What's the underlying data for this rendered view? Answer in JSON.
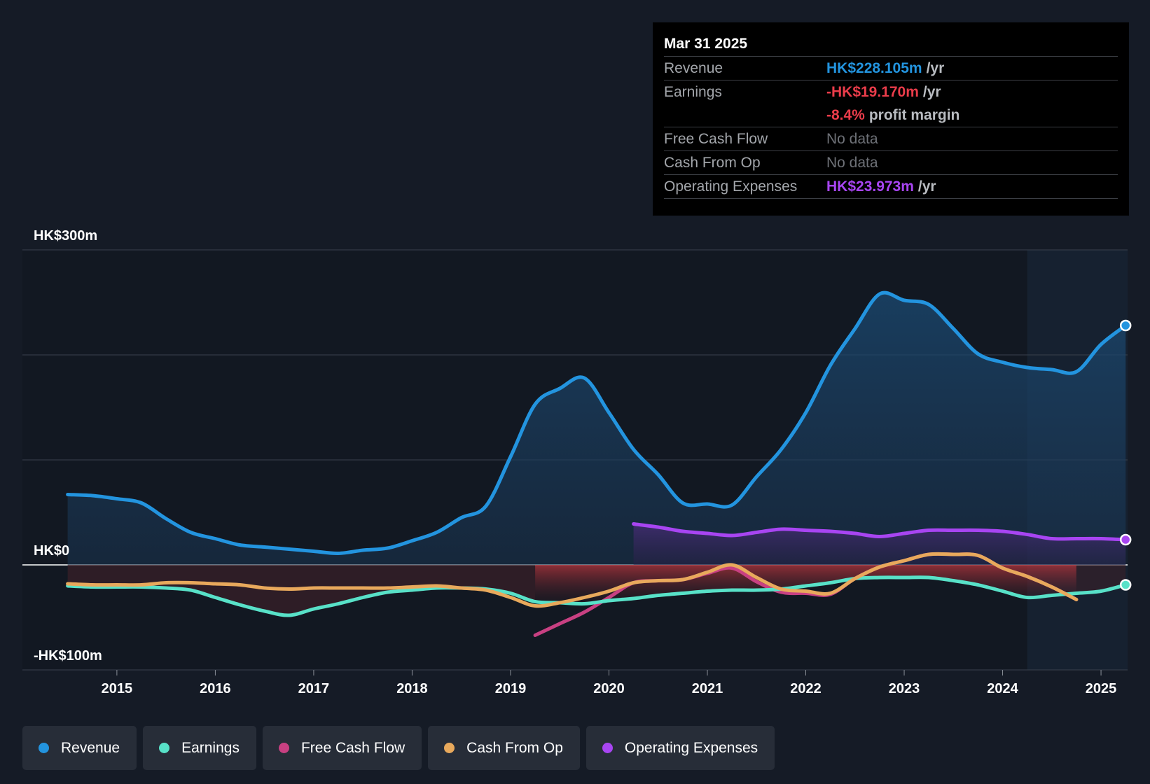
{
  "tooltip": {
    "date": "Mar 31 2025",
    "rows": [
      {
        "label": "Revenue",
        "value": "HK$228.105m",
        "unit": "/yr"
      },
      {
        "label": "Earnings",
        "value": "-HK$19.170m",
        "unit": "/yr"
      },
      {
        "label": "",
        "value": "-8.4%",
        "unit": "profit margin"
      },
      {
        "label": "Free Cash Flow",
        "value": "No data",
        "unit": ""
      },
      {
        "label": "Cash From Op",
        "value": "No data",
        "unit": ""
      },
      {
        "label": "Operating Expenses",
        "value": "HK$23.973m",
        "unit": "/yr"
      }
    ]
  },
  "legend": [
    {
      "label": "Revenue",
      "color": "#2394df"
    },
    {
      "label": "Earnings",
      "color": "#58e1c8"
    },
    {
      "label": "Free Cash Flow",
      "color": "#c84082"
    },
    {
      "label": "Cash From Op",
      "color": "#e8a95c"
    },
    {
      "label": "Operating Expenses",
      "color": "#a845f2"
    }
  ],
  "colors": {
    "background": "#151b26",
    "revenue": "#2394df",
    "earnings": "#58e1c8",
    "fcf": "#c84082",
    "cfo": "#e8a95c",
    "opex": "#a845f2",
    "negative_text": "#ea3c4a"
  },
  "chart_data": {
    "type": "line",
    "title": "",
    "xlabel": "",
    "ylabel": "",
    "y_unit": "HK$m",
    "ylim": [
      -100,
      300
    ],
    "xlim": [
      2014.04,
      2025.27
    ],
    "y_tick_labels": [
      {
        "value": 300,
        "label": "HK$300m"
      },
      {
        "value": 0,
        "label": "HK$0"
      },
      {
        "value": -100,
        "label": "-HK$100m"
      }
    ],
    "gridlines": [
      300,
      200,
      100,
      0,
      -100
    ],
    "x_ticks": [
      {
        "value": 2015,
        "label": "2015"
      },
      {
        "value": 2016,
        "label": "2016"
      },
      {
        "value": 2017,
        "label": "2017"
      },
      {
        "value": 2018,
        "label": "2018"
      },
      {
        "value": 2019,
        "label": "2019"
      },
      {
        "value": 2020,
        "label": "2020"
      },
      {
        "value": 2021,
        "label": "2021"
      },
      {
        "value": 2022,
        "label": "2022"
      },
      {
        "value": 2023,
        "label": "2023"
      },
      {
        "value": 2024,
        "label": "2024"
      },
      {
        "value": 2025,
        "label": "2025"
      }
    ],
    "past_year_start": 2024.25,
    "series": [
      {
        "name": "Revenue",
        "key": "revenue",
        "x": [
          2014.5,
          2014.75,
          2015.0,
          2015.25,
          2015.5,
          2015.75,
          2016.0,
          2016.25,
          2016.5,
          2016.75,
          2017.0,
          2017.25,
          2017.5,
          2017.75,
          2018.0,
          2018.25,
          2018.5,
          2018.75,
          2019.0,
          2019.25,
          2019.5,
          2019.75,
          2020.0,
          2020.25,
          2020.5,
          2020.75,
          2021.0,
          2021.25,
          2021.5,
          2021.75,
          2022.0,
          2022.25,
          2022.5,
          2022.75,
          2023.0,
          2023.25,
          2023.5,
          2023.75,
          2024.0,
          2024.25,
          2024.5,
          2024.75,
          2025.0,
          2025.25
        ],
        "values": [
          67,
          66,
          63,
          59,
          44,
          31,
          25,
          19,
          17,
          15,
          13,
          11,
          14,
          16,
          23,
          31,
          45,
          56,
          103,
          153,
          168,
          178,
          145,
          110,
          86,
          59,
          58,
          57,
          84,
          110,
          145,
          190,
          225,
          258,
          252,
          248,
          225,
          201,
          193,
          188,
          186,
          184,
          210,
          228
        ]
      },
      {
        "name": "Earnings",
        "key": "earnings",
        "x": [
          2014.5,
          2014.75,
          2015.0,
          2015.25,
          2015.5,
          2015.75,
          2016.0,
          2016.25,
          2016.5,
          2016.75,
          2017.0,
          2017.25,
          2017.5,
          2017.75,
          2018.0,
          2018.25,
          2018.5,
          2018.75,
          2019.0,
          2019.25,
          2019.5,
          2019.75,
          2020.0,
          2020.25,
          2020.5,
          2020.75,
          2021.0,
          2021.25,
          2021.5,
          2021.75,
          2022.0,
          2022.25,
          2022.5,
          2022.75,
          2023.0,
          2023.25,
          2023.5,
          2023.75,
          2024.0,
          2024.25,
          2024.5,
          2024.75,
          2025.0,
          2025.25
        ],
        "values": [
          -20,
          -21,
          -21,
          -21,
          -22,
          -24,
          -31,
          -38,
          -44,
          -48,
          -42,
          -37,
          -31,
          -26,
          -24,
          -22,
          -22,
          -23,
          -27,
          -35,
          -36,
          -37,
          -34,
          -32,
          -29,
          -27,
          -25,
          -24,
          -24,
          -23,
          -20,
          -17,
          -13,
          -12,
          -12,
          -12,
          -15,
          -19,
          -25,
          -31,
          -29,
          -27,
          -25,
          -19
        ]
      },
      {
        "name": "Free Cash Flow",
        "key": "fcf",
        "x": [
          2019.25,
          2019.5,
          2019.75,
          2020.0,
          2020.25,
          2020.5,
          2020.75,
          2021.0,
          2021.25,
          2021.5,
          2021.75,
          2022.0,
          2022.25,
          2022.5,
          2022.75,
          2023.0,
          2023.25,
          2023.5,
          2023.75,
          2024.0,
          2024.25,
          2024.5,
          2024.75
        ],
        "values": [
          -67,
          -56,
          -45,
          -31,
          -17,
          -15,
          -14,
          -8,
          -3,
          -16,
          -26,
          -27,
          -28,
          -13,
          -2,
          4,
          10,
          10,
          9,
          -3,
          -11,
          -21,
          -33
        ]
      },
      {
        "name": "Cash From Op",
        "key": "cfo",
        "x": [
          2014.5,
          2014.75,
          2015.0,
          2015.25,
          2015.5,
          2015.75,
          2016.0,
          2016.25,
          2016.5,
          2016.75,
          2017.0,
          2017.25,
          2017.5,
          2017.75,
          2018.0,
          2018.25,
          2018.5,
          2018.75,
          2019.0,
          2019.25,
          2019.5,
          2019.75,
          2020.0,
          2020.25,
          2020.5,
          2020.75,
          2021.0,
          2021.25,
          2021.5,
          2021.75,
          2022.0,
          2022.25,
          2022.5,
          2022.75,
          2023.0,
          2023.25,
          2023.5,
          2023.75,
          2024.0,
          2024.25,
          2024.5,
          2024.75
        ],
        "values": [
          -18,
          -19,
          -19,
          -19,
          -17,
          -17,
          -18,
          -19,
          -22,
          -23,
          -22,
          -22,
          -22,
          -22,
          -21,
          -20,
          -22,
          -24,
          -31,
          -39,
          -36,
          -31,
          -25,
          -17,
          -15,
          -14,
          -7,
          0,
          -12,
          -23,
          -25,
          -27,
          -13,
          -2,
          4,
          10,
          10,
          9,
          -3,
          -11,
          -21,
          -33
        ]
      },
      {
        "name": "Operating Expenses",
        "key": "opex",
        "x": [
          2020.25,
          2020.5,
          2020.75,
          2021.0,
          2021.25,
          2021.5,
          2021.75,
          2022.0,
          2022.25,
          2022.5,
          2022.75,
          2023.0,
          2023.25,
          2023.5,
          2023.75,
          2024.0,
          2024.25,
          2024.5,
          2024.75,
          2025.0,
          2025.25
        ],
        "values": [
          39,
          36,
          32,
          30,
          28,
          31,
          34,
          33,
          32,
          30,
          27,
          30,
          33,
          33,
          33,
          32,
          29,
          25,
          25,
          25,
          24
        ]
      }
    ]
  }
}
